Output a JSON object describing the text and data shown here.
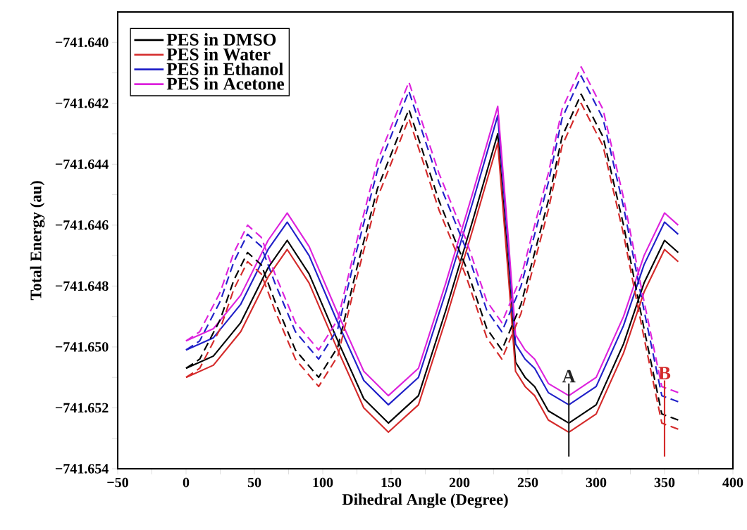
{
  "chart_data": {
    "type": "line",
    "xlabel": "Dihedral Angle (Degree)",
    "ylabel": "Total Energy (au)",
    "xlim": [
      -50,
      400
    ],
    "ylim": [
      -741.654,
      -741.639
    ],
    "xticks": [
      {
        "value": -50,
        "label": "−50"
      },
      {
        "value": -25,
        "label": null
      },
      {
        "value": 0,
        "label": "0"
      },
      {
        "value": 25,
        "label": null
      },
      {
        "value": 50,
        "label": "50"
      },
      {
        "value": 75,
        "label": null
      },
      {
        "value": 100,
        "label": "100"
      },
      {
        "value": 125,
        "label": null
      },
      {
        "value": 150,
        "label": "150"
      },
      {
        "value": 175,
        "label": null
      },
      {
        "value": 200,
        "label": "200"
      },
      {
        "value": 225,
        "label": null
      },
      {
        "value": 250,
        "label": "250"
      },
      {
        "value": 275,
        "label": null
      },
      {
        "value": 300,
        "label": "300"
      },
      {
        "value": 325,
        "label": null
      },
      {
        "value": 350,
        "label": "350"
      },
      {
        "value": 375,
        "label": null
      },
      {
        "value": 400,
        "label": "400"
      }
    ],
    "yticks": [
      {
        "value": -741.654,
        "label": "−741.654"
      },
      {
        "value": -741.653,
        "label": null
      },
      {
        "value": -741.652,
        "label": "−741.652"
      },
      {
        "value": -741.651,
        "label": null
      },
      {
        "value": -741.65,
        "label": "−741.650"
      },
      {
        "value": -741.649,
        "label": null
      },
      {
        "value": -741.648,
        "label": "−741.648"
      },
      {
        "value": -741.647,
        "label": null
      },
      {
        "value": -741.646,
        "label": "−741.646"
      },
      {
        "value": -741.645,
        "label": null
      },
      {
        "value": -741.644,
        "label": "−741.644"
      },
      {
        "value": -741.643,
        "label": null
      },
      {
        "value": -741.642,
        "label": "−741.642"
      },
      {
        "value": -741.641,
        "label": null
      },
      {
        "value": -741.64,
        "label": "−741.640"
      }
    ],
    "legend": "top left",
    "marker": "none",
    "series": [
      {
        "name": "PES in DMSO",
        "color": "#000000",
        "line_style": "solid",
        "x": [
          0,
          20,
          40,
          60,
          74,
          90,
          110,
          130,
          148,
          170,
          190,
          210,
          228,
          236,
          241,
          248,
          255,
          265,
          280,
          300,
          320,
          335,
          350,
          360
        ],
        "values": [
          -741.6507,
          -741.6503,
          -741.6492,
          -741.6474,
          -741.6465,
          -741.6476,
          -741.6497,
          -741.6517,
          -741.6525,
          -741.6516,
          -741.6488,
          -741.6458,
          -741.643,
          -741.6475,
          -741.6505,
          -741.651,
          -741.6513,
          -741.6521,
          -741.6525,
          -741.6519,
          -741.6499,
          -741.6479,
          -741.6465,
          -741.6469
        ]
      },
      {
        "name": "PES in Water",
        "color": "#d42a2a",
        "line_style": "solid",
        "x": [
          0,
          20,
          40,
          60,
          74,
          90,
          110,
          130,
          148,
          170,
          190,
          210,
          228,
          236,
          241,
          248,
          255,
          265,
          280,
          300,
          320,
          335,
          350,
          360
        ],
        "values": [
          -741.651,
          -741.6506,
          -741.6495,
          -741.6477,
          -741.6468,
          -741.6479,
          -741.65,
          -741.652,
          -741.6528,
          -741.6519,
          -741.6491,
          -741.6461,
          -741.6433,
          -741.6478,
          -741.6508,
          -741.6513,
          -741.6516,
          -741.6524,
          -741.6528,
          -741.6522,
          -741.6502,
          -741.6482,
          -741.6468,
          -741.6472
        ]
      },
      {
        "name": "PES in Ethanol",
        "color": "#2020c8",
        "line_style": "solid",
        "x": [
          0,
          20,
          40,
          60,
          74,
          90,
          110,
          130,
          148,
          170,
          190,
          210,
          228,
          236,
          241,
          248,
          255,
          265,
          280,
          300,
          320,
          335,
          350,
          360
        ],
        "values": [
          -741.6501,
          -741.6497,
          -741.6486,
          -741.6468,
          -741.6459,
          -741.647,
          -741.6491,
          -741.6511,
          -741.6519,
          -741.651,
          -741.6482,
          -741.6452,
          -741.6424,
          -741.6469,
          -741.6499,
          -741.6504,
          -741.6507,
          -741.6515,
          -741.6519,
          -741.6513,
          -741.6493,
          -741.6473,
          -741.6459,
          -741.6463
        ]
      },
      {
        "name": "PES in Acetone",
        "color": "#dd22dd",
        "line_style": "solid",
        "x": [
          0,
          20,
          40,
          60,
          74,
          90,
          110,
          130,
          148,
          170,
          190,
          210,
          228,
          236,
          241,
          248,
          255,
          265,
          280,
          300,
          320,
          335,
          350,
          360
        ],
        "values": [
          -741.6498,
          -741.6494,
          -741.6483,
          -741.6465,
          -741.6456,
          -741.6467,
          -741.6488,
          -741.6508,
          -741.6516,
          -741.6507,
          -741.6479,
          -741.6449,
          -741.6421,
          -741.6466,
          -741.6496,
          -741.6501,
          -741.6504,
          -741.6512,
          -741.6516,
          -741.651,
          -741.649,
          -741.647,
          -741.6456,
          -741.646
        ]
      },
      {
        "color": "#000000",
        "line_style": "dashed",
        "x": [
          0,
          10,
          25,
          35,
          45,
          55,
          65,
          80,
          97,
          111,
          125,
          140,
          163,
          185,
          205,
          220,
          231,
          245,
          265,
          275,
          289,
          305,
          320,
          335,
          348,
          360
        ],
        "values": [
          -741.6507,
          -741.6504,
          -741.6491,
          -741.6478,
          -741.6469,
          -741.6473,
          -741.6485,
          -741.6501,
          -741.651,
          -741.65,
          -741.6474,
          -741.6448,
          -741.6422,
          -741.6452,
          -741.6474,
          -741.6494,
          -741.6501,
          -741.6486,
          -741.6452,
          -741.6431,
          -741.6417,
          -741.6431,
          -741.646,
          -741.6494,
          -741.6522,
          -741.6524
        ]
      },
      {
        "color": "#d42a2a",
        "line_style": "dashed",
        "x": [
          0,
          10,
          25,
          35,
          45,
          55,
          65,
          80,
          97,
          111,
          125,
          140,
          163,
          185,
          205,
          220,
          231,
          245,
          265,
          275,
          289,
          305,
          320,
          335,
          348,
          360
        ],
        "values": [
          -741.651,
          -741.6507,
          -741.6494,
          -741.6481,
          -741.6472,
          -741.6476,
          -741.6488,
          -741.6504,
          -741.6513,
          -741.6503,
          -741.6477,
          -741.6451,
          -741.6425,
          -741.6455,
          -741.6477,
          -741.6497,
          -741.6504,
          -741.6489,
          -741.6455,
          -741.6434,
          -741.642,
          -741.6434,
          -741.6463,
          -741.6497,
          -741.6525,
          -741.6527
        ]
      },
      {
        "color": "#2020c8",
        "line_style": "dashed",
        "x": [
          0,
          10,
          25,
          35,
          45,
          55,
          65,
          80,
          97,
          111,
          125,
          140,
          163,
          185,
          205,
          220,
          231,
          245,
          265,
          275,
          289,
          305,
          320,
          335,
          348,
          360
        ],
        "values": [
          -741.6501,
          -741.6498,
          -741.6485,
          -741.6472,
          -741.6463,
          -741.6467,
          -741.6479,
          -741.6495,
          -741.6504,
          -741.6494,
          -741.6468,
          -741.6442,
          -741.6416,
          -741.6446,
          -741.6468,
          -741.6488,
          -741.6495,
          -741.648,
          -741.6446,
          -741.6425,
          -741.6411,
          -741.6425,
          -741.6454,
          -741.6488,
          -741.6516,
          -741.6518
        ]
      },
      {
        "color": "#dd22dd",
        "line_style": "dashed",
        "x": [
          0,
          10,
          25,
          35,
          45,
          55,
          65,
          80,
          97,
          111,
          125,
          140,
          163,
          185,
          205,
          220,
          231,
          245,
          265,
          275,
          289,
          305,
          320,
          335,
          348,
          360
        ],
        "values": [
          -741.6498,
          -741.6495,
          -741.6482,
          -741.6469,
          -741.646,
          -741.6464,
          -741.6476,
          -741.6492,
          -741.6501,
          -741.6491,
          -741.6465,
          -741.6439,
          -741.6413,
          -741.6443,
          -741.6465,
          -741.6485,
          -741.6492,
          -741.6477,
          -741.6443,
          -741.6422,
          -741.6408,
          -741.6422,
          -741.6451,
          -741.6485,
          -741.6513,
          -741.6515
        ]
      },
      {
        "color": "#222222",
        "line_style": "solid",
        "x": [
          280,
          280
        ],
        "values": [
          -741.6512,
          -741.6536
        ]
      },
      {
        "color": "#d42a2a",
        "line_style": "solid",
        "x": [
          350,
          350
        ],
        "values": [
          -741.6511,
          -741.6536
        ]
      }
    ],
    "annotations": [
      {
        "text": "A",
        "x": 280,
        "y": -741.6512
      },
      {
        "text": "B",
        "x": 350,
        "y": -741.6511
      }
    ]
  }
}
